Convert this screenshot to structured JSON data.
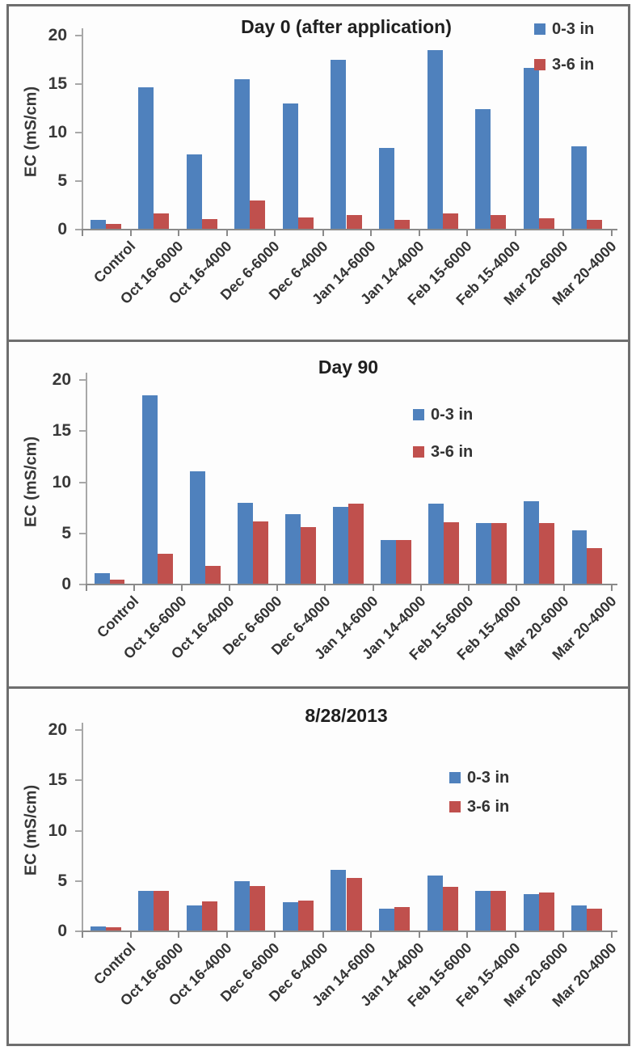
{
  "figure": {
    "ylabel": "EC (mS/cm)",
    "series_colors": {
      "blue": "#4F81BD",
      "red": "#C0504D"
    },
    "axis_color": "#8a8a8a",
    "text_color": "#343434"
  },
  "chart_data": [
    {
      "type": "bar",
      "title": "Day 0 (after application)",
      "xlabel": "",
      "ylabel": "EC (mS/cm)",
      "ylim": [
        0,
        20
      ],
      "yticks": [
        0,
        5,
        10,
        15,
        20
      ],
      "grid": false,
      "legend_position": "top-right-inside",
      "categories": [
        "Control",
        "Oct 16-6000",
        "Oct 16-4000",
        "Dec 6-6000",
        "Dec 6-4000",
        "Jan 14-6000",
        "Jan 14-4000",
        "Feb 15-6000",
        "Feb 15-4000",
        "Mar 20-6000",
        "Mar 20-4000"
      ],
      "series": [
        {
          "name": "0-3 in",
          "color": "#4F81BD",
          "values": [
            0.9,
            14.6,
            7.7,
            15.4,
            12.9,
            17.4,
            8.3,
            18.4,
            12.3,
            16.6,
            8.5
          ]
        },
        {
          "name": "3-6 in",
          "color": "#C0504D",
          "values": [
            0.5,
            1.6,
            1.0,
            2.9,
            1.2,
            1.4,
            0.9,
            1.6,
            1.4,
            1.1,
            0.9
          ]
        }
      ]
    },
    {
      "type": "bar",
      "title": "Day 90",
      "xlabel": "",
      "ylabel": "EC (mS/cm)",
      "ylim": [
        0,
        20
      ],
      "yticks": [
        0,
        5,
        10,
        15,
        20
      ],
      "grid": false,
      "legend_position": "center-right-inside",
      "categories": [
        "Control",
        "Oct 16-6000",
        "Oct 16-4000",
        "Dec 6-6000",
        "Dec 6-4000",
        "Jan 14-6000",
        "Jan 14-4000",
        "Feb 15-6000",
        "Feb 15-4000",
        "Mar 20-6000",
        "Mar 20-4000"
      ],
      "series": [
        {
          "name": "0-3 in",
          "color": "#4F81BD",
          "values": [
            1.0,
            18.4,
            11.0,
            7.9,
            6.8,
            7.5,
            4.3,
            7.8,
            5.9,
            8.1,
            5.2
          ]
        },
        {
          "name": "3-6 in",
          "color": "#C0504D",
          "values": [
            0.4,
            2.9,
            1.7,
            6.1,
            5.5,
            7.8,
            4.3,
            6.0,
            5.9,
            5.9,
            3.5
          ]
        }
      ]
    },
    {
      "type": "bar",
      "title": "8/28/2013",
      "xlabel": "",
      "ylabel": "EC (mS/cm)",
      "ylim": [
        0,
        20
      ],
      "yticks": [
        0,
        5,
        10,
        15,
        20
      ],
      "grid": false,
      "legend_position": "center-right-inside",
      "categories": [
        "Control",
        "Oct 16-6000",
        "Oct 16-4000",
        "Dec 6-6000",
        "Dec 6-4000",
        "Jan 14-6000",
        "Jan 14-4000",
        "Feb 15-6000",
        "Feb 15-4000",
        "Mar 20-6000",
        "Mar 20-4000"
      ],
      "series": [
        {
          "name": "0-3 in",
          "color": "#4F81BD",
          "values": [
            0.4,
            3.9,
            2.5,
            4.9,
            2.8,
            6.0,
            2.2,
            5.5,
            3.9,
            3.6,
            2.5
          ]
        },
        {
          "name": "3-6 in",
          "color": "#C0504D",
          "values": [
            0.3,
            3.9,
            2.9,
            4.4,
            3.0,
            5.2,
            2.3,
            4.3,
            3.9,
            3.8,
            2.2
          ]
        }
      ]
    }
  ]
}
